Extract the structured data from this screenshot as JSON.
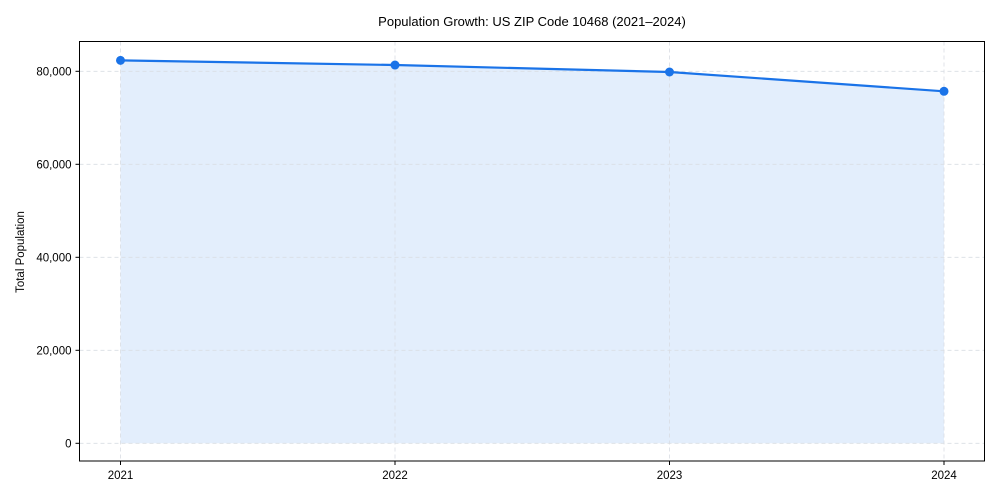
{
  "chart_data": {
    "type": "area",
    "title": "Population Growth: US ZIP Code 10468 (2021–2024)",
    "xlabel": "",
    "ylabel": "Total Population",
    "categories": [
      "2021",
      "2022",
      "2023",
      "2024"
    ],
    "series": [
      {
        "name": "Total Population",
        "values": [
          82350,
          81350,
          79850,
          75700
        ]
      }
    ],
    "ylim": [
      -4000,
      86200
    ],
    "yticks": [
      0,
      20000,
      40000,
      60000,
      80000
    ],
    "ytick_labels": [
      "0",
      "20,000",
      "40,000",
      "60,000",
      "80,000"
    ],
    "grid": true,
    "legend": null,
    "colors": {
      "line": "#1a73e8",
      "fill": "#e3eefc",
      "grid": "#d9dde3",
      "axis": "#000000"
    }
  }
}
